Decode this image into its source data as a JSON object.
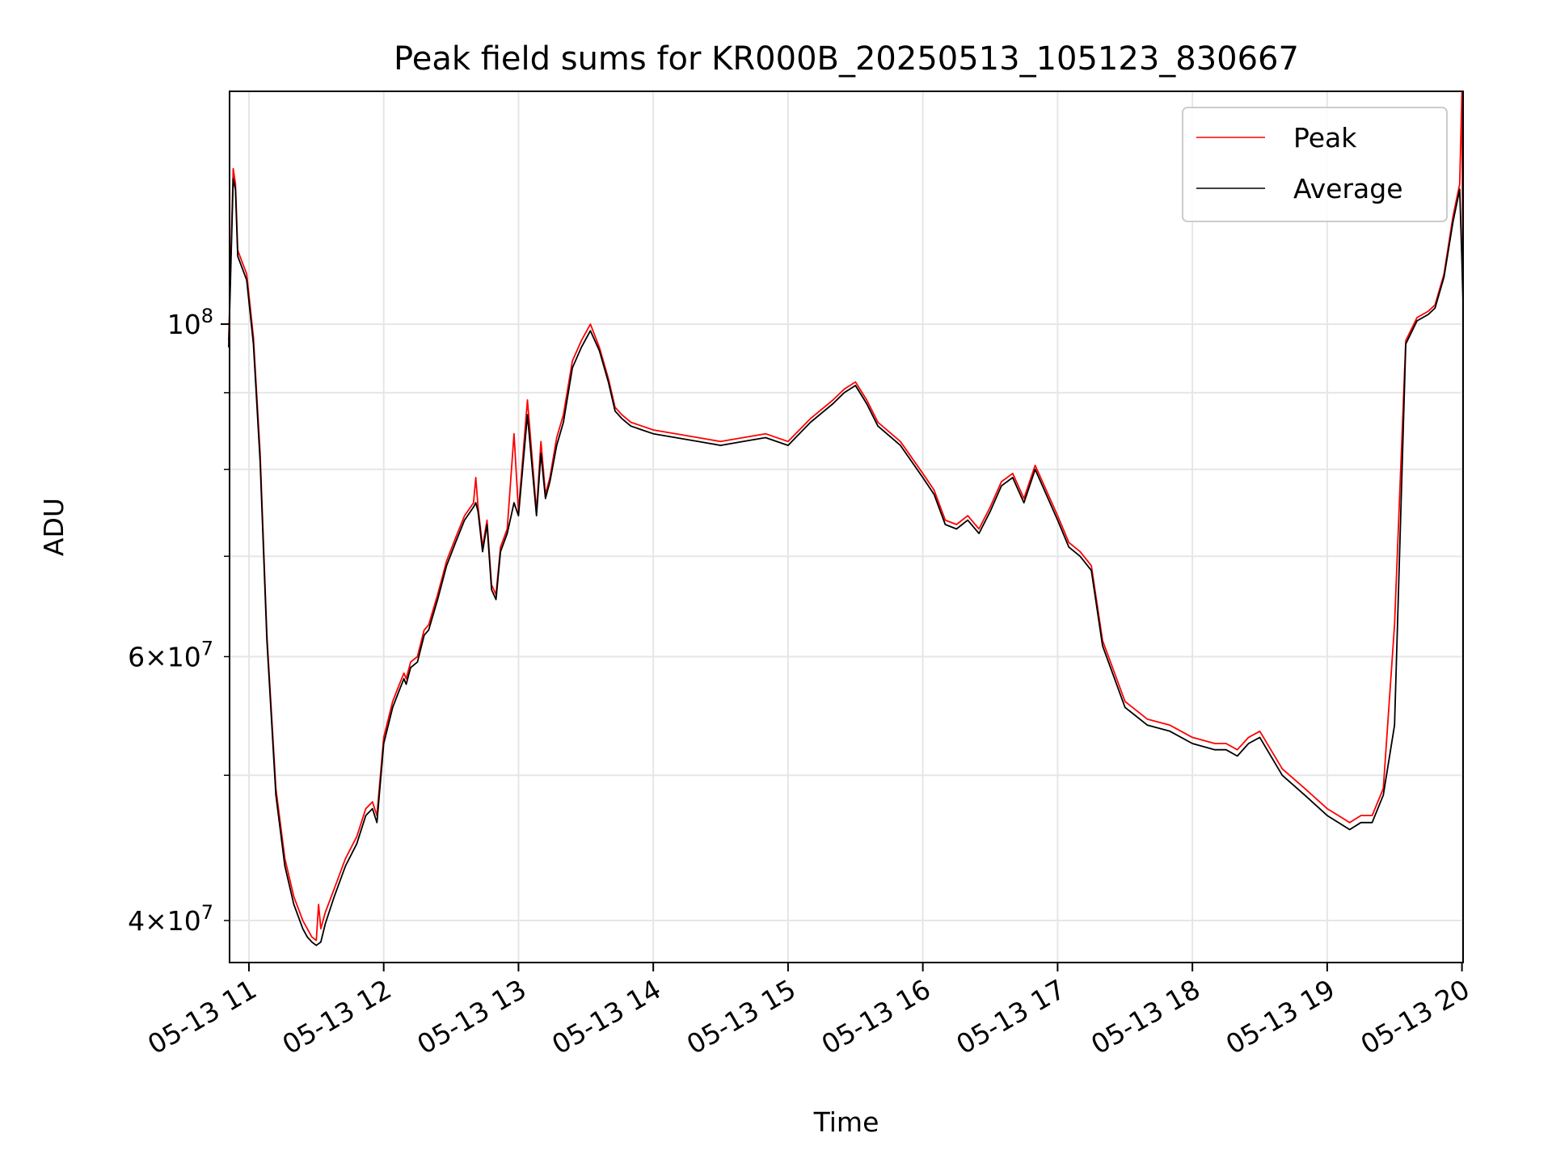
{
  "chart_data": {
    "type": "line",
    "title": "Peak field sums for KR000B_20250513_105123_830667",
    "xlabel": "Time",
    "ylabel": "ADU",
    "yscale": "log",
    "grid": true,
    "legend_position": "top-right",
    "xlim": [
      "05-13 10:51:23",
      "05-13 20:00:30"
    ],
    "ylim": [
      37500000,
      143000000
    ],
    "x_ticks": [
      {
        "label": "05-13 11",
        "value": "05-13 11:00"
      },
      {
        "label": "05-13 12",
        "value": "05-13 12:00"
      },
      {
        "label": "05-13 13",
        "value": "05-13 13:00"
      },
      {
        "label": "05-13 14",
        "value": "05-13 14:00"
      },
      {
        "label": "05-13 15",
        "value": "05-13 15:00"
      },
      {
        "label": "05-13 16",
        "value": "05-13 16:00"
      },
      {
        "label": "05-13 17",
        "value": "05-13 17:00"
      },
      {
        "label": "05-13 18",
        "value": "05-13 18:00"
      },
      {
        "label": "05-13 19",
        "value": "05-13 19:00"
      },
      {
        "label": "05-13 20",
        "value": "05-13 20:00"
      }
    ],
    "y_ticks_major": [
      {
        "value": 100000000,
        "mantissa": "",
        "exponent": "8"
      }
    ],
    "y_ticks_minor": [
      {
        "value": 40000000,
        "mantissa": "4",
        "exponent": "7"
      },
      {
        "value": 60000000,
        "mantissa": "6",
        "exponent": "7"
      }
    ],
    "y_minor_unlabeled": [
      50000000,
      70000000,
      80000000,
      90000000
    ],
    "series": [
      {
        "name": "Peak",
        "color": "#ff0000",
        "x": [
          "05-13 10:51",
          "05-13 10:53",
          "05-13 10:54",
          "05-13 10:55",
          "05-13 10:57",
          "05-13 10:59",
          "05-13 11:02",
          "05-13 11:05",
          "05-13 11:08",
          "05-13 11:12",
          "05-13 11:16",
          "05-13 11:20",
          "05-13 11:24",
          "05-13 11:26",
          "05-13 11:28",
          "05-13 11:30",
          "05-13 11:31",
          "05-13 11:32",
          "05-13 11:34",
          "05-13 11:38",
          "05-13 11:43",
          "05-13 11:48",
          "05-13 11:52",
          "05-13 11:55",
          "05-13 11:57",
          "05-13 12:00",
          "05-13 12:04",
          "05-13 12:07",
          "05-13 12:09",
          "05-13 12:10",
          "05-13 12:12",
          "05-13 12:15",
          "05-13 12:18",
          "05-13 12:20",
          "05-13 12:24",
          "05-13 12:28",
          "05-13 12:32",
          "05-13 12:36",
          "05-13 12:40",
          "05-13 12:41",
          "05-13 12:42",
          "05-13 12:44",
          "05-13 12:46",
          "05-13 12:48",
          "05-13 12:50",
          "05-13 12:52",
          "05-13 12:55",
          "05-13 12:58",
          "05-13 13:00",
          "05-13 13:04",
          "05-13 13:08",
          "05-13 13:10",
          "05-13 13:12",
          "05-13 13:14",
          "05-13 13:17",
          "05-13 13:20",
          "05-13 13:24",
          "05-13 13:28",
          "05-13 13:32",
          "05-13 13:36",
          "05-13 13:40",
          "05-13 13:43",
          "05-13 13:46",
          "05-13 13:50",
          "05-13 13:55",
          "05-13 14:00",
          "05-13 14:10",
          "05-13 14:20",
          "05-13 14:30",
          "05-13 14:40",
          "05-13 14:50",
          "05-13 15:00",
          "05-13 15:10",
          "05-13 15:20",
          "05-13 15:25",
          "05-13 15:30",
          "05-13 15:35",
          "05-13 15:40",
          "05-13 15:50",
          "05-13 16:00",
          "05-13 16:05",
          "05-13 16:10",
          "05-13 16:15",
          "05-13 16:20",
          "05-13 16:25",
          "05-13 16:30",
          "05-13 16:35",
          "05-13 16:40",
          "05-13 16:45",
          "05-13 16:50",
          "05-13 17:00",
          "05-13 17:05",
          "05-13 17:10",
          "05-13 17:15",
          "05-13 17:20",
          "05-13 17:30",
          "05-13 17:40",
          "05-13 17:50",
          "05-13 18:00",
          "05-13 18:10",
          "05-13 18:15",
          "05-13 18:20",
          "05-13 18:25",
          "05-13 18:30",
          "05-13 18:40",
          "05-13 18:50",
          "05-13 19:00",
          "05-13 19:10",
          "05-13 19:15",
          "05-13 19:20",
          "05-13 19:25",
          "05-13 19:30",
          "05-13 19:35",
          "05-13 19:40",
          "05-13 19:45",
          "05-13 19:48",
          "05-13 19:52",
          "05-13 19:56",
          "05-13 19:59",
          "05-13 20:00",
          "05-13 20:00:30"
        ],
        "values": [
          97500000,
          127000000,
          124000000,
          112000000,
          110000000,
          108000000,
          98000000,
          82000000,
          62000000,
          49000000,
          44000000,
          41500000,
          40000000,
          39500000,
          39000000,
          38800000,
          41000000,
          39500000,
          40500000,
          42000000,
          44000000,
          45500000,
          47500000,
          48000000,
          47000000,
          53000000,
          56000000,
          57500000,
          58500000,
          58000000,
          59500000,
          60000000,
          62500000,
          63000000,
          66000000,
          69500000,
          72000000,
          74500000,
          76000000,
          79000000,
          75500000,
          71000000,
          74000000,
          67000000,
          66000000,
          71000000,
          73000000,
          84500000,
          75000000,
          89000000,
          75000000,
          83500000,
          77000000,
          79000000,
          84000000,
          87000000,
          94500000,
          97500000,
          100000000,
          96500000,
          92000000,
          88000000,
          87000000,
          86000000,
          85500000,
          85000000,
          84500000,
          84000000,
          83500000,
          84000000,
          84500000,
          83500000,
          86500000,
          89000000,
          90500000,
          91500000,
          89000000,
          86000000,
          83500000,
          79500000,
          77500000,
          74000000,
          73500000,
          74500000,
          73000000,
          75500000,
          78500000,
          79500000,
          76500000,
          80500000,
          74500000,
          71500000,
          70500000,
          69000000,
          61500000,
          56000000,
          54500000,
          54000000,
          53000000,
          52500000,
          52500000,
          52000000,
          53000000,
          53500000,
          50500000,
          49000000,
          47500000,
          46500000,
          47000000,
          47000000,
          49000000,
          63000000,
          97500000,
          101000000,
          102000000,
          103000000,
          108000000,
          118000000,
          124000000,
          143000000,
          104000000
        ]
      },
      {
        "name": "Average",
        "color": "#000000",
        "x": [
          "05-13 10:51",
          "05-13 10:53",
          "05-13 10:54",
          "05-13 10:55",
          "05-13 10:57",
          "05-13 10:59",
          "05-13 11:02",
          "05-13 11:05",
          "05-13 11:08",
          "05-13 11:12",
          "05-13 11:16",
          "05-13 11:20",
          "05-13 11:24",
          "05-13 11:26",
          "05-13 11:28",
          "05-13 11:30",
          "05-13 11:31",
          "05-13 11:32",
          "05-13 11:34",
          "05-13 11:38",
          "05-13 11:43",
          "05-13 11:48",
          "05-13 11:52",
          "05-13 11:55",
          "05-13 11:57",
          "05-13 12:00",
          "05-13 12:04",
          "05-13 12:07",
          "05-13 12:09",
          "05-13 12:10",
          "05-13 12:12",
          "05-13 12:15",
          "05-13 12:18",
          "05-13 12:20",
          "05-13 12:24",
          "05-13 12:28",
          "05-13 12:32",
          "05-13 12:36",
          "05-13 12:40",
          "05-13 12:41",
          "05-13 12:42",
          "05-13 12:44",
          "05-13 12:46",
          "05-13 12:48",
          "05-13 12:50",
          "05-13 12:52",
          "05-13 12:55",
          "05-13 12:58",
          "05-13 13:00",
          "05-13 13:04",
          "05-13 13:08",
          "05-13 13:10",
          "05-13 13:12",
          "05-13 13:14",
          "05-13 13:17",
          "05-13 13:20",
          "05-13 13:24",
          "05-13 13:28",
          "05-13 13:32",
          "05-13 13:36",
          "05-13 13:40",
          "05-13 13:43",
          "05-13 13:46",
          "05-13 13:50",
          "05-13 13:55",
          "05-13 14:00",
          "05-13 14:10",
          "05-13 14:20",
          "05-13 14:30",
          "05-13 14:40",
          "05-13 14:50",
          "05-13 15:00",
          "05-13 15:10",
          "05-13 15:20",
          "05-13 15:25",
          "05-13 15:30",
          "05-13 15:35",
          "05-13 15:40",
          "05-13 15:50",
          "05-13 16:00",
          "05-13 16:05",
          "05-13 16:10",
          "05-13 16:15",
          "05-13 16:20",
          "05-13 16:25",
          "05-13 16:30",
          "05-13 16:35",
          "05-13 16:40",
          "05-13 16:45",
          "05-13 16:50",
          "05-13 17:00",
          "05-13 17:05",
          "05-13 17:10",
          "05-13 17:15",
          "05-13 17:20",
          "05-13 17:30",
          "05-13 17:40",
          "05-13 17:50",
          "05-13 18:00",
          "05-13 18:10",
          "05-13 18:15",
          "05-13 18:20",
          "05-13 18:25",
          "05-13 18:30",
          "05-13 18:40",
          "05-13 18:50",
          "05-13 19:00",
          "05-13 19:10",
          "05-13 19:15",
          "05-13 19:20",
          "05-13 19:25",
          "05-13 19:30",
          "05-13 19:35",
          "05-13 19:40",
          "05-13 19:45",
          "05-13 19:48",
          "05-13 19:52",
          "05-13 19:56",
          "05-13 19:59",
          "05-13 20:00",
          "05-13 20:00:30"
        ],
        "values": [
          96500000,
          125000000,
          123000000,
          111000000,
          109000000,
          107000000,
          97000000,
          81000000,
          61500000,
          48500000,
          43500000,
          41000000,
          39500000,
          39000000,
          38700000,
          38500000,
          38600000,
          38700000,
          39800000,
          41500000,
          43500000,
          45000000,
          47000000,
          47500000,
          46500000,
          52500000,
          55500000,
          57000000,
          58000000,
          57500000,
          59000000,
          59500000,
          62000000,
          62500000,
          65500000,
          69000000,
          71500000,
          74000000,
          75500000,
          76000000,
          75000000,
          70500000,
          73500000,
          66500000,
          65500000,
          70500000,
          72500000,
          76000000,
          74500000,
          87000000,
          74500000,
          82000000,
          76500000,
          78500000,
          83000000,
          86000000,
          93500000,
          96500000,
          99000000,
          96000000,
          91500000,
          87500000,
          86500000,
          85500000,
          85000000,
          84500000,
          84000000,
          83500000,
          83000000,
          83500000,
          84000000,
          83000000,
          86000000,
          88500000,
          90000000,
          91000000,
          88500000,
          85500000,
          83000000,
          79000000,
          77000000,
          73500000,
          73000000,
          74000000,
          72500000,
          75000000,
          78000000,
          79000000,
          76000000,
          80000000,
          74000000,
          71000000,
          70000000,
          68500000,
          61000000,
          55500000,
          54000000,
          53500000,
          52500000,
          52000000,
          52000000,
          51500000,
          52500000,
          53000000,
          50000000,
          48500000,
          47000000,
          46000000,
          46500000,
          46500000,
          48500000,
          54000000,
          97000000,
          100500000,
          101500000,
          102500000,
          107500000,
          117000000,
          123000000,
          110000000,
          103500000
        ]
      }
    ]
  }
}
